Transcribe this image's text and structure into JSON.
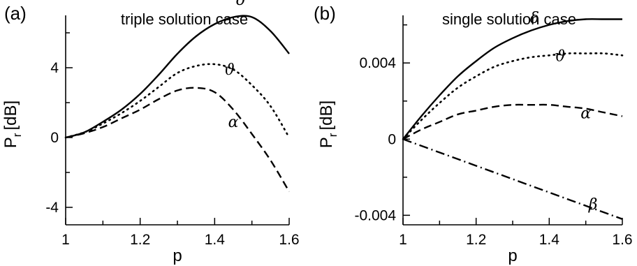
{
  "chart_data": [
    {
      "type": "line",
      "panel_label": "(a)",
      "title": "triple solution case",
      "xlabel": "p",
      "ylabel": "P",
      "ylabel_sub": "r",
      "ylabel_unit": "[dB]",
      "xlim": [
        1.0,
        1.6
      ],
      "ylim": [
        -5.0,
        7.0
      ],
      "xticks": [
        1.0,
        1.2,
        1.4,
        1.6
      ],
      "xtick_labels": [
        "1",
        "1.2",
        "1.4",
        "1.6"
      ],
      "yticks": [
        -4,
        0,
        4
      ],
      "ytick_labels": [
        "-4",
        "0",
        "4"
      ],
      "grid": false,
      "legend": "none",
      "series": [
        {
          "name": "δ",
          "style": "solid",
          "label_at": [
            1.47,
            7.6
          ],
          "x": [
            1.0,
            1.05,
            1.1,
            1.15,
            1.2,
            1.25,
            1.3,
            1.35,
            1.4,
            1.45,
            1.5,
            1.55,
            1.6
          ],
          "y": [
            0.0,
            0.3,
            0.9,
            1.6,
            2.5,
            3.6,
            4.8,
            5.8,
            6.5,
            6.9,
            6.9,
            6.1,
            4.8
          ]
        },
        {
          "name": "ϑ",
          "style": "dotted",
          "label_at": [
            1.44,
            3.6
          ],
          "x": [
            1.0,
            1.05,
            1.1,
            1.15,
            1.2,
            1.25,
            1.3,
            1.35,
            1.4,
            1.45,
            1.5,
            1.55,
            1.6
          ],
          "y": [
            0.0,
            0.3,
            0.8,
            1.4,
            2.1,
            2.9,
            3.7,
            4.1,
            4.2,
            3.9,
            3.0,
            1.8,
            0.0
          ]
        },
        {
          "name": "α",
          "style": "dashed",
          "label_at": [
            1.45,
            0.6
          ],
          "x": [
            1.0,
            1.05,
            1.1,
            1.15,
            1.2,
            1.25,
            1.3,
            1.35,
            1.4,
            1.45,
            1.5,
            1.55,
            1.6
          ],
          "y": [
            0.0,
            0.25,
            0.6,
            1.1,
            1.6,
            2.2,
            2.7,
            2.85,
            2.6,
            1.6,
            0.2,
            -1.3,
            -3.1
          ]
        }
      ]
    },
    {
      "type": "line",
      "panel_label": "(b)",
      "title": "single solution case",
      "xlabel": "p",
      "ylabel": "P",
      "ylabel_sub": "r",
      "ylabel_unit": "[dB]",
      "xlim": [
        1.0,
        1.6
      ],
      "ylim": [
        -0.0045,
        0.0065
      ],
      "xticks": [
        1.0,
        1.2,
        1.4,
        1.6
      ],
      "xtick_labels": [
        "1",
        "1.2",
        "1.4",
        "1.6"
      ],
      "yticks": [
        -0.004,
        0.0,
        0.004
      ],
      "ytick_labels": [
        "-0.004",
        "0",
        "0.004"
      ],
      "grid": false,
      "legend": "none",
      "series": [
        {
          "name": "δ",
          "style": "solid",
          "label_at": [
            1.36,
            0.0061
          ],
          "x": [
            1.0,
            1.05,
            1.1,
            1.15,
            1.2,
            1.25,
            1.3,
            1.35,
            1.4,
            1.45,
            1.5,
            1.55,
            1.6
          ],
          "y": [
            0.0,
            0.0012,
            0.0023,
            0.0033,
            0.0041,
            0.0048,
            0.0053,
            0.0057,
            0.006,
            0.0062,
            0.0063,
            0.0063,
            0.0063
          ]
        },
        {
          "name": "ϑ",
          "style": "dotted",
          "label_at": [
            1.43,
            0.0041
          ],
          "x": [
            1.0,
            1.05,
            1.1,
            1.15,
            1.2,
            1.25,
            1.3,
            1.35,
            1.4,
            1.45,
            1.5,
            1.55,
            1.6
          ],
          "y": [
            0.0,
            0.001,
            0.0019,
            0.0027,
            0.0033,
            0.0038,
            0.0041,
            0.0043,
            0.0044,
            0.0045,
            0.0045,
            0.0045,
            0.0044
          ]
        },
        {
          "name": "α",
          "style": "dashed",
          "label_at": [
            1.5,
            0.0011
          ],
          "x": [
            1.0,
            1.05,
            1.1,
            1.15,
            1.2,
            1.25,
            1.3,
            1.35,
            1.4,
            1.45,
            1.5,
            1.55,
            1.6
          ],
          "y": [
            0.0,
            0.0005,
            0.0009,
            0.0013,
            0.0015,
            0.0017,
            0.0018,
            0.0018,
            0.0018,
            0.0017,
            0.0016,
            0.0014,
            0.0012
          ]
        },
        {
          "name": "β",
          "style": "dashdot",
          "label_at": [
            1.52,
            -0.0037
          ],
          "x": [
            1.0,
            1.1,
            1.2,
            1.3,
            1.4,
            1.5,
            1.6
          ],
          "y": [
            0.0,
            -0.0007,
            -0.0014,
            -0.0021,
            -0.0028,
            -0.0035,
            -0.0042
          ]
        }
      ]
    }
  ]
}
